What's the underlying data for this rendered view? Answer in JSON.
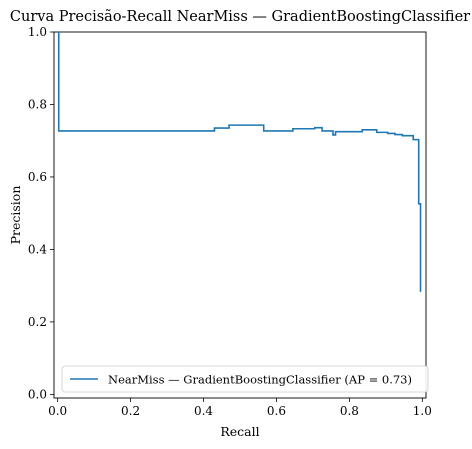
{
  "chart_data": {
    "type": "line",
    "title": "Curva Precisão-Recall NearMiss — GradientBoostingClassifier",
    "xlabel": "Recall",
    "ylabel": "Precision",
    "xlim": [
      -0.01,
      1.01
    ],
    "ylim": [
      -0.01,
      1.0
    ],
    "x_ticks": [
      0.0,
      0.2,
      0.4,
      0.6,
      0.8,
      1.0
    ],
    "x_tick_labels": [
      "0.0",
      "0.2",
      "0.4",
      "0.6",
      "0.8",
      "1.0"
    ],
    "y_ticks": [
      0.0,
      0.2,
      0.4,
      0.6,
      0.8,
      1.0
    ],
    "y_tick_labels": [
      "0.0",
      "0.2",
      "0.4",
      "0.6",
      "0.8",
      "1.0"
    ],
    "grid": false,
    "legend": {
      "placement": "lower-right",
      "entries": [
        "NearMiss — GradientBoostingClassifier (AP = 0.73)"
      ]
    },
    "series": [
      {
        "name": "NearMiss — GradientBoostingClassifier (AP = 0.73)",
        "color": "#1f77b4",
        "drawstyle": "steps-post",
        "x": [
          0.0,
          0.003,
          0.003,
          0.43,
          0.43,
          0.47,
          0.47,
          0.565,
          0.565,
          0.645,
          0.645,
          0.705,
          0.705,
          0.725,
          0.725,
          0.74,
          0.74,
          0.755,
          0.755,
          0.762,
          0.762,
          0.835,
          0.835,
          0.875,
          0.875,
          0.905,
          0.905,
          0.925,
          0.925,
          0.945,
          0.945,
          0.975,
          0.975,
          0.99,
          0.99,
          0.995,
          0.995,
          0.997
        ],
        "y": [
          1.0,
          1.0,
          0.727,
          0.727,
          0.735,
          0.735,
          0.743,
          0.743,
          0.727,
          0.727,
          0.733,
          0.733,
          0.736,
          0.736,
          0.727,
          0.727,
          0.727,
          0.727,
          0.716,
          0.716,
          0.725,
          0.725,
          0.73,
          0.73,
          0.723,
          0.723,
          0.72,
          0.72,
          0.717,
          0.717,
          0.714,
          0.714,
          0.703,
          0.703,
          0.526,
          0.526,
          0.285,
          0.285
        ]
      }
    ]
  }
}
